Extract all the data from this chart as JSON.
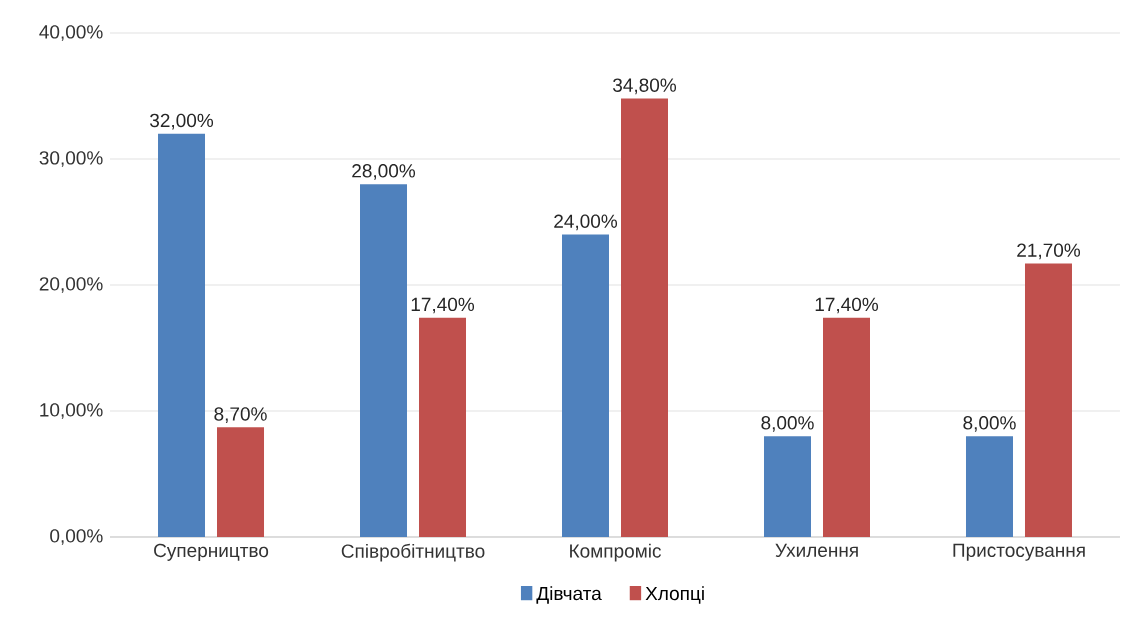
{
  "chart_data": {
    "type": "bar",
    "categories": [
      "Суперництво",
      "Співробітництво",
      "Компроміс",
      "Ухилення",
      "Пристосування"
    ],
    "series": [
      {
        "name": "Дівчата",
        "color": "#4f81bd",
        "values": [
          32,
          28,
          24,
          8,
          8
        ],
        "value_labels": [
          "32,00%",
          "28,00%",
          "24,00%",
          "8,00%",
          "8,00%"
        ]
      },
      {
        "name": "Хлопці",
        "color": "#c0504d",
        "values": [
          8.7,
          17.4,
          34.8,
          17.4,
          21.7
        ],
        "value_labels": [
          "8,70%",
          "17,40%",
          "34,80%",
          "17,40%",
          "21,70%"
        ]
      }
    ],
    "ylim": [
      0,
      40
    ],
    "yticks": [
      {
        "value": 0,
        "label": "0,00%"
      },
      {
        "value": 10,
        "label": "10,00%"
      },
      {
        "value": 20,
        "label": "20,00%"
      },
      {
        "value": 30,
        "label": "30,00%"
      },
      {
        "value": 40,
        "label": "40,00%"
      }
    ],
    "grid": "y",
    "legend": "bottom"
  }
}
